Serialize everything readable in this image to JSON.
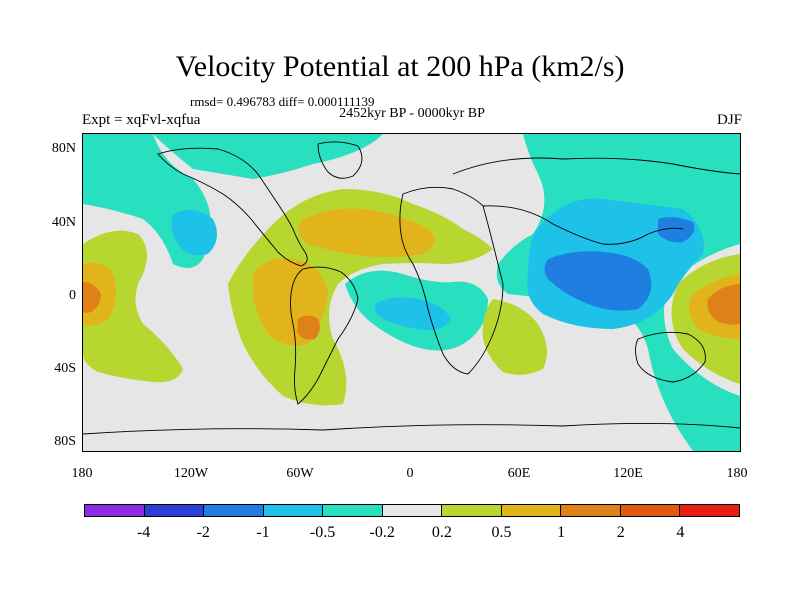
{
  "title": "Velocity Potential at 200 hPa (km2/s)",
  "stats_text": "rmsd= 0.496783 diff= 0.000111139",
  "period": "2452kyr BP - 0000kyr BP",
  "experiment": "Expt = xqFvl-xqfua",
  "season": "DJF",
  "lat_labels": [
    "80N",
    "40N",
    "0",
    "40S",
    "80S"
  ],
  "lon_labels": [
    "180",
    "120W",
    "60W",
    "0",
    "60E",
    "120E",
    "180"
  ],
  "colorbar": {
    "colors": [
      "#8b2be2",
      "#2a3fd6",
      "#1f7fe0",
      "#1ec1e8",
      "#28e0c0",
      "#e8e8e8",
      "#b8d630",
      "#e0b41a",
      "#e08018",
      "#e05a14",
      "#e82014"
    ],
    "labels": [
      "-4",
      "-2",
      "-1",
      "-0.5",
      "-0.2",
      "0.2",
      "0.5",
      "1",
      "2",
      "4"
    ]
  }
}
